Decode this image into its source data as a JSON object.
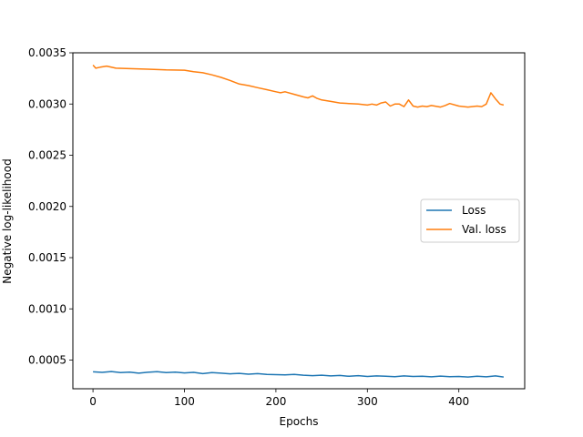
{
  "chart_data": {
    "type": "line",
    "title": "",
    "xlabel": "Epochs",
    "ylabel": "Negative log-likelihood",
    "xlim": [
      -22,
      472
    ],
    "ylim": [
      0.00022,
      0.0035
    ],
    "xticks": [
      0,
      100,
      200,
      300,
      400
    ],
    "xtick_labels": [
      "0",
      "100",
      "200",
      "300",
      "400"
    ],
    "yticks": [
      0.0005,
      0.001,
      0.0015,
      0.002,
      0.0025,
      0.003,
      0.0035
    ],
    "ytick_labels": [
      "0.0005",
      "0.0010",
      "0.0015",
      "0.0020",
      "0.0025",
      "0.0030",
      "0.0035"
    ],
    "grid": false,
    "legend_position": "center-right",
    "series": [
      {
        "name": "Loss",
        "color": "#1f77b4",
        "x": [
          0,
          10,
          20,
          30,
          40,
          50,
          60,
          70,
          80,
          90,
          100,
          110,
          120,
          130,
          140,
          150,
          160,
          170,
          180,
          190,
          200,
          210,
          220,
          230,
          240,
          250,
          260,
          270,
          280,
          290,
          300,
          310,
          320,
          330,
          340,
          350,
          360,
          370,
          380,
          390,
          400,
          410,
          420,
          430,
          440,
          449
        ],
        "y": [
          0.000385,
          0.00038,
          0.000388,
          0.000378,
          0.000383,
          0.000372,
          0.000381,
          0.000386,
          0.000378,
          0.000382,
          0.000375,
          0.00038,
          0.000368,
          0.000378,
          0.000372,
          0.000366,
          0.00037,
          0.000362,
          0.000368,
          0.00036,
          0.000358,
          0.000355,
          0.00036,
          0.000352,
          0.000348,
          0.000352,
          0.000345,
          0.00035,
          0.000342,
          0.000348,
          0.00034,
          0.000345,
          0.000342,
          0.000338,
          0.000345,
          0.00034,
          0.000342,
          0.000336,
          0.000344,
          0.000338,
          0.00034,
          0.000335,
          0.000342,
          0.000336,
          0.000345,
          0.000335
        ]
      },
      {
        "name": "Val. loss",
        "color": "#ff7f0e",
        "x": [
          0,
          3,
          8,
          15,
          25,
          40,
          60,
          80,
          100,
          110,
          120,
          130,
          140,
          150,
          160,
          170,
          180,
          190,
          200,
          205,
          210,
          220,
          230,
          235,
          240,
          245,
          250,
          260,
          270,
          280,
          290,
          300,
          305,
          310,
          315,
          320,
          325,
          330,
          335,
          340,
          345,
          350,
          355,
          360,
          365,
          370,
          380,
          385,
          390,
          400,
          410,
          420,
          425,
          430,
          435,
          440,
          445,
          449
        ],
        "y": [
          0.00338,
          0.00335,
          0.00336,
          0.00337,
          0.00335,
          0.003345,
          0.00334,
          0.003333,
          0.00333,
          0.003315,
          0.003305,
          0.003285,
          0.00326,
          0.00323,
          0.003195,
          0.00318,
          0.00316,
          0.00314,
          0.00312,
          0.00311,
          0.00312,
          0.003095,
          0.00307,
          0.00306,
          0.00308,
          0.003055,
          0.00304,
          0.003025,
          0.00301,
          0.003005,
          0.003,
          0.00299,
          0.003,
          0.00299,
          0.00301,
          0.00302,
          0.00298,
          0.003,
          0.003,
          0.002975,
          0.00304,
          0.00298,
          0.00297,
          0.00298,
          0.002975,
          0.002985,
          0.00297,
          0.002985,
          0.003005,
          0.00298,
          0.00297,
          0.00298,
          0.002975,
          0.003,
          0.00311,
          0.00305,
          0.003,
          0.00299
        ]
      }
    ]
  }
}
